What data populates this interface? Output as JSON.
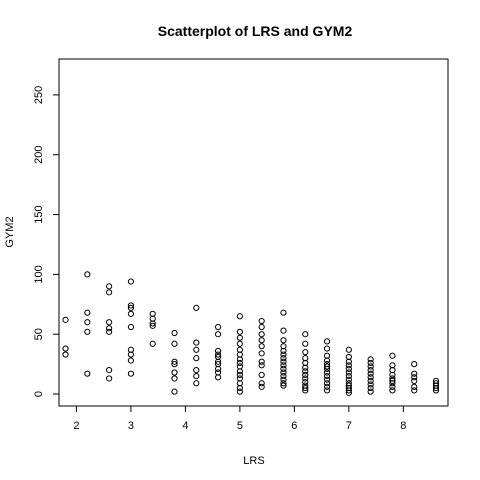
{
  "chart_data": {
    "type": "scatter",
    "title": "Scatterplot of LRS and GYM2",
    "xlabel": "LRS",
    "ylabel": "GYM2",
    "xlim": [
      1.68,
      8.82
    ],
    "ylim": [
      -10,
      280
    ],
    "x_ticks": [
      2,
      3,
      4,
      5,
      6,
      7,
      8
    ],
    "x_tick_labels": [
      "2",
      "3",
      "4",
      "5",
      "6",
      "7",
      "8"
    ],
    "y_ticks": [
      0,
      50,
      100,
      150,
      200,
      250
    ],
    "y_tick_labels": [
      "0",
      "50",
      "100",
      "150",
      "200",
      "250"
    ],
    "grid": false,
    "legend": "none",
    "series": [
      {
        "marker": "open-circle",
        "color": "#000000",
        "points": [
          [
            1.8,
            62
          ],
          [
            1.8,
            38
          ],
          [
            1.8,
            33
          ],
          [
            2.2,
            100
          ],
          [
            2.2,
            68
          ],
          [
            2.2,
            60
          ],
          [
            2.2,
            52
          ],
          [
            2.2,
            17
          ],
          [
            2.6,
            90
          ],
          [
            2.6,
            85
          ],
          [
            2.6,
            60
          ],
          [
            2.6,
            55
          ],
          [
            2.6,
            52
          ],
          [
            2.6,
            20
          ],
          [
            2.6,
            13
          ],
          [
            3.0,
            94
          ],
          [
            3.0,
            74
          ],
          [
            3.0,
            72
          ],
          [
            3.0,
            67
          ],
          [
            3.0,
            56
          ],
          [
            3.0,
            37
          ],
          [
            3.0,
            33
          ],
          [
            3.0,
            28
          ],
          [
            3.0,
            17
          ],
          [
            3.4,
            67
          ],
          [
            3.4,
            63
          ],
          [
            3.4,
            59
          ],
          [
            3.4,
            57
          ],
          [
            3.4,
            42
          ],
          [
            3.8,
            51
          ],
          [
            3.8,
            42
          ],
          [
            3.8,
            27
          ],
          [
            3.8,
            25
          ],
          [
            3.8,
            18
          ],
          [
            3.8,
            13
          ],
          [
            3.8,
            2
          ],
          [
            4.2,
            72
          ],
          [
            4.2,
            43
          ],
          [
            4.2,
            37
          ],
          [
            4.2,
            30
          ],
          [
            4.2,
            20
          ],
          [
            4.2,
            15
          ],
          [
            4.2,
            9
          ],
          [
            4.6,
            56
          ],
          [
            4.6,
            50
          ],
          [
            4.6,
            36
          ],
          [
            4.6,
            33
          ],
          [
            4.6,
            31
          ],
          [
            4.6,
            27
          ],
          [
            4.6,
            25
          ],
          [
            4.6,
            21
          ],
          [
            4.6,
            18
          ],
          [
            4.6,
            14
          ],
          [
            5.0,
            65
          ],
          [
            5.0,
            52
          ],
          [
            5.0,
            47
          ],
          [
            5.0,
            42
          ],
          [
            5.0,
            37
          ],
          [
            5.0,
            33
          ],
          [
            5.0,
            29
          ],
          [
            5.0,
            26
          ],
          [
            5.0,
            23
          ],
          [
            5.0,
            19
          ],
          [
            5.0,
            16
          ],
          [
            5.0,
            13
          ],
          [
            5.0,
            9
          ],
          [
            5.0,
            5
          ],
          [
            5.0,
            2
          ],
          [
            5.4,
            61
          ],
          [
            5.4,
            56
          ],
          [
            5.4,
            50
          ],
          [
            5.4,
            45
          ],
          [
            5.4,
            40
          ],
          [
            5.4,
            34
          ],
          [
            5.4,
            27
          ],
          [
            5.4,
            24
          ],
          [
            5.4,
            16
          ],
          [
            5.4,
            9
          ],
          [
            5.4,
            6
          ],
          [
            5.8,
            68
          ],
          [
            5.8,
            53
          ],
          [
            5.8,
            45
          ],
          [
            5.8,
            40
          ],
          [
            5.8,
            36
          ],
          [
            5.8,
            33
          ],
          [
            5.8,
            30
          ],
          [
            5.8,
            27
          ],
          [
            5.8,
            24
          ],
          [
            5.8,
            21
          ],
          [
            5.8,
            18
          ],
          [
            5.8,
            15
          ],
          [
            5.8,
            12
          ],
          [
            5.8,
            9
          ],
          [
            5.8,
            7
          ],
          [
            6.2,
            50
          ],
          [
            6.2,
            42
          ],
          [
            6.2,
            35
          ],
          [
            6.2,
            30
          ],
          [
            6.2,
            26
          ],
          [
            6.2,
            22
          ],
          [
            6.2,
            19
          ],
          [
            6.2,
            16
          ],
          [
            6.2,
            13
          ],
          [
            6.2,
            10
          ],
          [
            6.2,
            7
          ],
          [
            6.2,
            5
          ],
          [
            6.2,
            3
          ],
          [
            6.6,
            44
          ],
          [
            6.6,
            38
          ],
          [
            6.6,
            32
          ],
          [
            6.6,
            28
          ],
          [
            6.6,
            25
          ],
          [
            6.6,
            23
          ],
          [
            6.6,
            21
          ],
          [
            6.6,
            18
          ],
          [
            6.6,
            15
          ],
          [
            6.6,
            12
          ],
          [
            6.6,
            9
          ],
          [
            6.6,
            6
          ],
          [
            6.6,
            3
          ],
          [
            7.0,
            37
          ],
          [
            7.0,
            31
          ],
          [
            7.0,
            27
          ],
          [
            7.0,
            24
          ],
          [
            7.0,
            21
          ],
          [
            7.0,
            18
          ],
          [
            7.0,
            15
          ],
          [
            7.0,
            12
          ],
          [
            7.0,
            9
          ],
          [
            7.0,
            7
          ],
          [
            7.0,
            5
          ],
          [
            7.0,
            3
          ],
          [
            7.0,
            1
          ],
          [
            7.4,
            29
          ],
          [
            7.4,
            26
          ],
          [
            7.4,
            23
          ],
          [
            7.4,
            20
          ],
          [
            7.4,
            17
          ],
          [
            7.4,
            14
          ],
          [
            7.4,
            11
          ],
          [
            7.4,
            8
          ],
          [
            7.4,
            5
          ],
          [
            7.4,
            2
          ],
          [
            7.8,
            32
          ],
          [
            7.8,
            24
          ],
          [
            7.8,
            20
          ],
          [
            7.8,
            16
          ],
          [
            7.8,
            13
          ],
          [
            7.8,
            11
          ],
          [
            7.8,
            9
          ],
          [
            7.8,
            6
          ],
          [
            7.8,
            3
          ],
          [
            8.2,
            25
          ],
          [
            8.2,
            17
          ],
          [
            8.2,
            14
          ],
          [
            8.2,
            11
          ],
          [
            8.2,
            6
          ],
          [
            8.2,
            3
          ],
          [
            8.6,
            11
          ],
          [
            8.6,
            9
          ],
          [
            8.6,
            7
          ],
          [
            8.6,
            5
          ],
          [
            8.6,
            3
          ]
        ]
      }
    ]
  }
}
